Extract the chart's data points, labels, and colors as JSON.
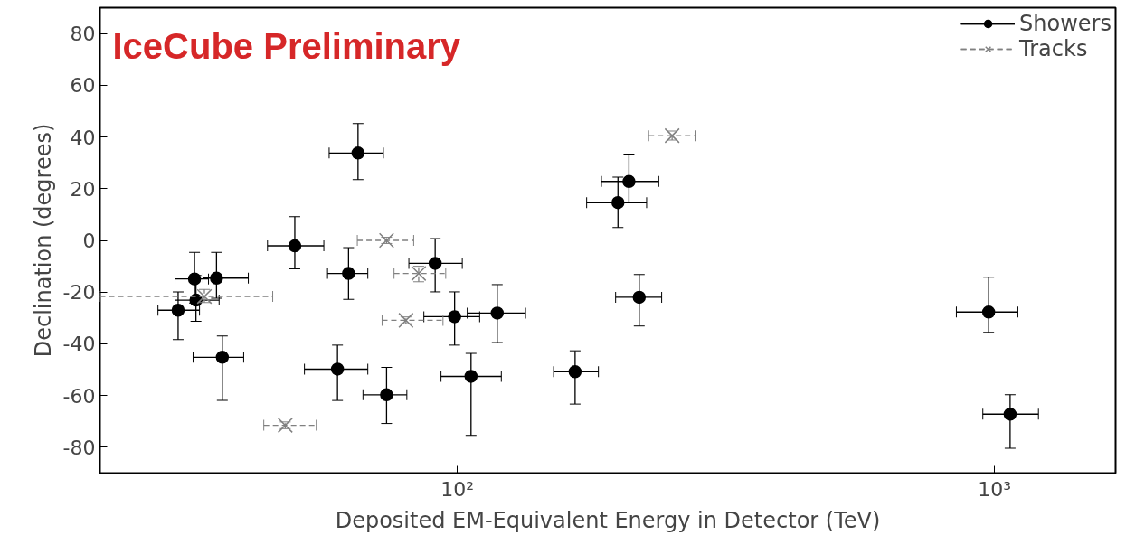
{
  "chart_data": {
    "type": "scatter",
    "xlabel": "Deposited EM-Equivalent Energy in Detector (TeV)",
    "ylabel": "Declination (degrees)",
    "annotations": [
      "IceCube Preliminary"
    ],
    "log": "x",
    "xlim": [
      21.6,
      1680
    ],
    "ylim": [
      -90,
      90
    ],
    "xticks": [
      {
        "value": 100,
        "label": "10²"
      },
      {
        "value": 1000,
        "label": "10³"
      }
    ],
    "yticks": [
      -80,
      -60,
      -40,
      -20,
      0,
      20,
      40,
      60,
      80
    ],
    "grid": false,
    "legend": "top right",
    "series": [
      {
        "name": "Showers",
        "color": "#000000",
        "marker": "circle",
        "line_style": "solid",
        "x": [
          65.3,
          49.8,
          62.7,
          90.9,
          208.6,
          199,
          218,
          98.8,
          118.6,
          106,
          165.6,
          73.8,
          59.8,
          36.5,
          35.6,
          32.4,
          32.6,
          30.2,
          975,
          1069
        ],
        "values": [
          33.8,
          -2.1,
          -12.8,
          -8.9,
          22.8,
          14.6,
          -22.0,
          -29.5,
          -28.1,
          -52.6,
          -50.8,
          -59.7,
          -49.8,
          -45.2,
          -14.6,
          -14.9,
          -23.1,
          -27.0,
          -27.7,
          -67.2
        ],
        "errors": [
          [
            23.5,
            45.2
          ],
          [
            -11.0,
            9.2
          ],
          [
            -22.8,
            -2.8
          ],
          [
            -19.9,
            0.7
          ],
          [
            14.6,
            33.4
          ],
          [
            5.0,
            24.5
          ],
          [
            -33.1,
            -13.2
          ],
          [
            -40.5,
            -19.9
          ],
          [
            -39.5,
            -17.1
          ],
          [
            -75.4,
            -43.7
          ],
          [
            -63.3,
            -42.7
          ],
          [
            -70.8,
            -49.1
          ],
          [
            -61.9,
            -40.5
          ],
          [
            -61.9,
            -37.0
          ],
          [
            -22.4,
            -4.6
          ],
          [
            -24.2,
            -4.6
          ],
          [
            -31.3,
            -13.5
          ],
          [
            -38.4,
            -19.9
          ],
          [
            -35.6,
            -14.2
          ],
          [
            -80.4,
            -59.7
          ]
        ],
        "xerrors": [
          [
            57.7,
            72.8
          ],
          [
            44.3,
            56.4
          ],
          [
            57.3,
            68.1
          ],
          [
            81.2,
            102.1
          ],
          [
            185.4,
            237
          ],
          [
            174,
            225
          ],
          [
            197,
            240
          ],
          [
            86.6,
            110
          ],
          [
            104.3,
            133.9
          ],
          [
            93.2,
            120.7
          ],
          [
            151,
            183
          ],
          [
            66.7,
            80.5
          ],
          [
            51.9,
            68.1
          ],
          [
            32.2,
            40.0
          ],
          [
            33.6,
            40.8
          ],
          [
            29.8,
            34.4
          ],
          [
            29.8,
            36.0
          ],
          [
            27.7,
            33.1
          ],
          [
            849,
            1105
          ],
          [
            951,
            1207
          ]
        ]
      },
      {
        "name": "Tracks",
        "color": "#808080",
        "marker": "cross",
        "line_style": "dashed",
        "x": [
          251,
          73.8,
          84.7,
          80.2,
          47.8,
          33.8
        ],
        "values": [
          40.5,
          0.0,
          -12.8,
          -30.9,
          -71.5,
          -21.7
        ],
        "errors": [
          [
            38.8,
            42.3
          ],
          [
            -1.2,
            1.2
          ],
          [
            -16,
            -10
          ],
          [
            -32.2,
            -29.6
          ],
          [
            -72.8,
            -70.2
          ],
          [
            -24,
            -19
          ]
        ],
        "xerrors": [
          [
            227,
            278
          ],
          [
            65.1,
            82.9
          ],
          [
            76.2,
            95.1
          ],
          [
            72.4,
            94
          ],
          [
            43.6,
            54.6
          ],
          [
            21.6,
            45.3
          ]
        ]
      }
    ]
  }
}
